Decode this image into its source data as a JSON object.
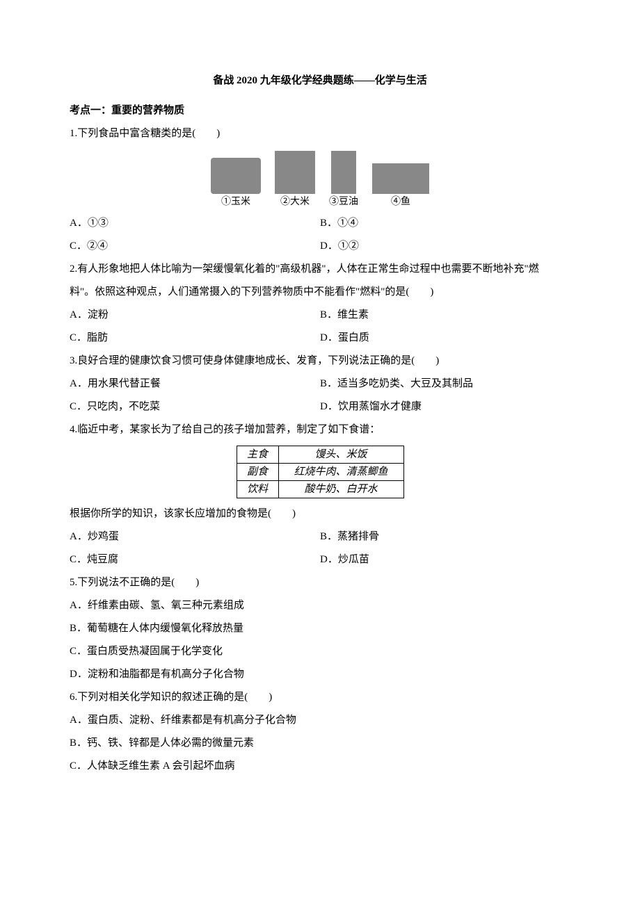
{
  "title": "备战 2020 九年级化学经典题练——化学与生活",
  "section1": {
    "heading": "考点一：重要的营养物质"
  },
  "q1": {
    "stem": "1.下列食品中富含糖类的是(　　)",
    "captions": {
      "c1": "①玉米",
      "c2": "②大米",
      "c3": "③豆油",
      "c4": "④鱼"
    },
    "opts": {
      "a": "A．①③",
      "b": "B．①④",
      "c": "C．②④",
      "d": "D．①②"
    }
  },
  "q2": {
    "line1": "2.有人形象地把人体比喻为一架缓慢氧化着的\"高级机器\"，人体在正常生命过程中也需要不断地补充\"燃",
    "line2": "料\"。依照这种观点，人们通常摄入的下列营养物质中不能看作\"燃料\"的是(　　)",
    "opts": {
      "a": "A．淀粉",
      "b": "B．维生素",
      "c": "C．脂肪",
      "d": "D．蛋白质"
    }
  },
  "q3": {
    "stem": "3.良好合理的健康饮食习惯可使身体健康地成长、发育，下列说法正确的是(　　)",
    "opts": {
      "a": "A．用水果代替正餐",
      "b": "B．适当多吃奶类、大豆及其制品",
      "c": "C．只吃肉，不吃菜",
      "d": "D．饮用蒸馏水才健康"
    }
  },
  "q4": {
    "stem": "4.临近中考，某家长为了给自己的孩子增加营养，制定了如下食谱：",
    "table": {
      "r1c1": "主食",
      "r1c2": "馒头、米饭",
      "r2c1": "副食",
      "r2c2": "红烧牛肉、清蒸鲫鱼",
      "r3c1": "饮料",
      "r3c2": "酸牛奶、白开水"
    },
    "follow": "根据你所学的知识，该家长应增加的食物是(　　)",
    "opts": {
      "a": "A．炒鸡蛋",
      "b": "B．蒸猪排骨",
      "c": "C．炖豆腐",
      "d": "D．炒瓜苗"
    }
  },
  "q5": {
    "stem": "5.下列说法不正确的是(　　)",
    "opts": {
      "a": "A．纤维素由碳、氢、氧三种元素组成",
      "b": "B．葡萄糖在人体内缓慢氧化释放热量",
      "c": "C．蛋白质受热凝固属于化学变化",
      "d": "D．淀粉和油脂都是有机高分子化合物"
    }
  },
  "q6": {
    "stem": "6.下列对相关化学知识的叙述正确的是(　　)",
    "opts": {
      "a": "A．蛋白质、淀粉、纤维素都是有机高分子化合物",
      "b": "B．钙、铁、锌都是人体必需的微量元素",
      "c": "C．人体缺乏维生素 A 会引起坏血病"
    }
  }
}
